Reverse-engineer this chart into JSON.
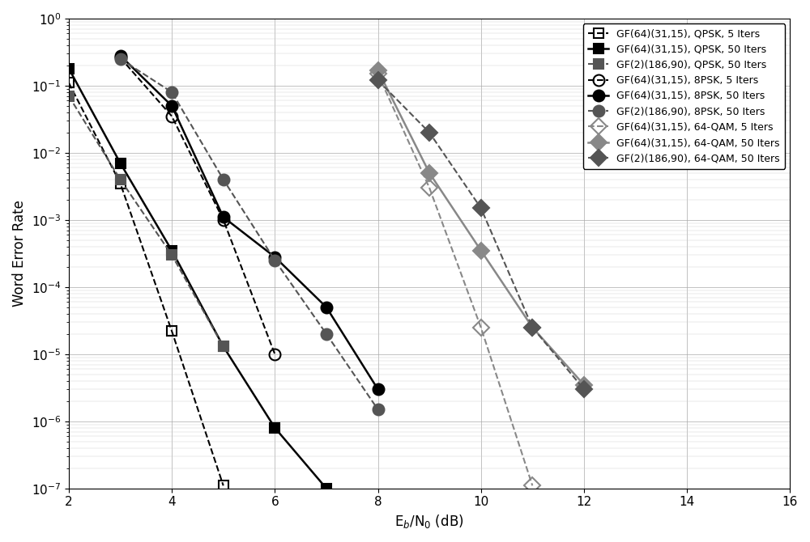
{
  "series": [
    {
      "label": "GF(64)(31,15), QPSK, 5 Iters",
      "x": [
        2,
        3,
        4,
        5
      ],
      "y": [
        0.11,
        0.0035,
        2.2e-05,
        1.1e-07
      ],
      "color": "black",
      "linestyle": "dashed",
      "marker": "s",
      "fillstyle": "none",
      "linewidth": 1.5,
      "markersize": 9
    },
    {
      "label": "GF(64)(31,15), QPSK, 50 Iters",
      "x": [
        2,
        3,
        4,
        5,
        6,
        7
      ],
      "y": [
        0.18,
        0.007,
        0.00035,
        1.3e-05,
        8e-07,
        1e-07
      ],
      "color": "black",
      "linestyle": "solid",
      "marker": "s",
      "fillstyle": "full",
      "linewidth": 1.8,
      "markersize": 9
    },
    {
      "label": "GF(2)(186,90), QPSK, 50 Iters",
      "x": [
        2,
        3,
        4,
        5
      ],
      "y": [
        0.07,
        0.004,
        0.0003,
        1.3e-05
      ],
      "color": "#555555",
      "linestyle": "dashed",
      "marker": "s",
      "fillstyle": "full",
      "linewidth": 1.5,
      "markersize": 9
    },
    {
      "label": "GF(64)(31,15), 8PSK, 5 Iters",
      "x": [
        3,
        4,
        5,
        6
      ],
      "y": [
        0.26,
        0.035,
        0.001,
        1e-05
      ],
      "color": "black",
      "linestyle": "dashed",
      "marker": "o",
      "fillstyle": "none",
      "linewidth": 1.5,
      "markersize": 10
    },
    {
      "label": "GF(64)(31,15), 8PSK, 50 Iters",
      "x": [
        3,
        4,
        5,
        6,
        7,
        8
      ],
      "y": [
        0.28,
        0.05,
        0.0011,
        0.00028,
        5e-05,
        3e-06
      ],
      "color": "black",
      "linestyle": "solid",
      "marker": "o",
      "fillstyle": "full",
      "linewidth": 1.8,
      "markersize": 10
    },
    {
      "label": "GF(2)(186,90), 8PSK, 50 Iters",
      "x": [
        3,
        4,
        5,
        6,
        7,
        8
      ],
      "y": [
        0.25,
        0.08,
        0.004,
        0.00025,
        2e-05,
        1.5e-06
      ],
      "color": "#555555",
      "linestyle": "dashed",
      "marker": "o",
      "fillstyle": "full",
      "linewidth": 1.5,
      "markersize": 10
    },
    {
      "label": "GF(64)(31,15), 64-QAM, 5 Iters",
      "x": [
        8,
        9,
        10,
        11
      ],
      "y": [
        0.15,
        0.003,
        2.5e-05,
        1.1e-07
      ],
      "color": "#888888",
      "linestyle": "dashed",
      "marker": "D",
      "fillstyle": "none",
      "linewidth": 1.5,
      "markersize": 10
    },
    {
      "label": "GF(64)(31,15), 64-QAM, 50 Iters",
      "x": [
        8,
        9,
        10,
        11,
        12
      ],
      "y": [
        0.17,
        0.005,
        0.00035,
        2.5e-05,
        3.5e-06
      ],
      "color": "#888888",
      "linestyle": "solid",
      "marker": "D",
      "fillstyle": "full",
      "linewidth": 1.8,
      "markersize": 10
    },
    {
      "label": "GF(2)(186,90), 64-QAM, 50 Iters",
      "x": [
        8,
        9,
        10,
        11,
        12
      ],
      "y": [
        0.12,
        0.02,
        0.0015,
        2.5e-05,
        3e-06
      ],
      "color": "#555555",
      "linestyle": "dashed",
      "marker": "D",
      "fillstyle": "full",
      "linewidth": 1.5,
      "markersize": 10
    }
  ],
  "xlabel": "E_b/N_0 (dB)",
  "ylabel": "Word Error Rate",
  "xlim": [
    2,
    16
  ],
  "ylim": [
    1e-07,
    1
  ],
  "xticks": [
    2,
    4,
    6,
    8,
    10,
    12,
    14,
    16
  ],
  "grid": true,
  "legend_loc": "upper right",
  "figsize": [
    10.0,
    6.7
  ],
  "dpi": 100
}
